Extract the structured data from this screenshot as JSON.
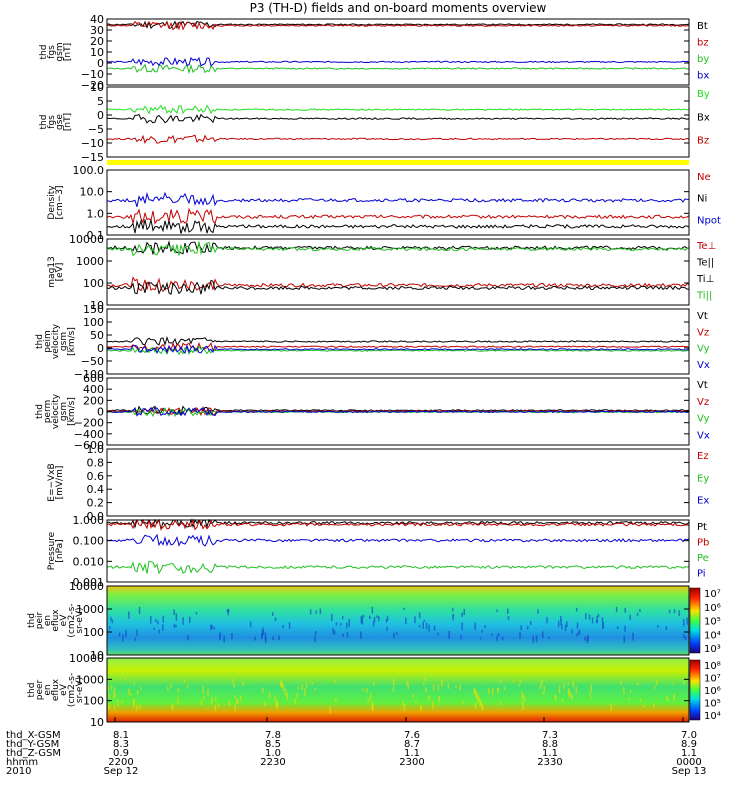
{
  "title": "P3 (TH-D) fields and on-board moments overview",
  "colors": {
    "black": "#000000",
    "red": "#c00000",
    "darkred": "#8b0000",
    "blue": "#0000d0",
    "green": "#20e020",
    "yellow": "#ffff00"
  },
  "chart_data": [
    {
      "id": "fgs_gsm",
      "type": "line",
      "ylabel": [
        "thd",
        "fgs",
        "gsm",
        "[nT]"
      ],
      "yticks": [
        "40",
        "30",
        "20",
        "10",
        "0",
        "−10",
        "−20"
      ],
      "ylim": [
        -20,
        40
      ],
      "legend": [
        {
          "name": "Bt",
          "color": "#000000"
        },
        {
          "name": "bz",
          "color": "#c00000"
        },
        {
          "name": "by",
          "color": "#20c020"
        },
        {
          "name": "bx",
          "color": "#0000d0"
        }
      ],
      "series": [
        {
          "name": "Bt",
          "level": 35
        },
        {
          "name": "bz",
          "level": 34
        },
        {
          "name": "by",
          "level": -5
        },
        {
          "name": "bx",
          "level": 1
        }
      ]
    },
    {
      "id": "fgs_gse",
      "type": "line",
      "ylabel": [
        "thd",
        "fgs",
        "gse",
        "[nT]"
      ],
      "yticks": [
        "10",
        "5",
        "0",
        "−5",
        "−10",
        "−15"
      ],
      "ylim": [
        -18,
        13
      ],
      "legend": [
        {
          "name": "By",
          "color": "#20e020"
        },
        {
          "name": "Bx",
          "color": "#000000"
        },
        {
          "name": "Bz",
          "color": "#c00000"
        }
      ],
      "series": [
        {
          "name": "By",
          "level": 3
        },
        {
          "name": "Bx",
          "level": -1
        },
        {
          "name": "Bz",
          "level": -10
        }
      ]
    },
    {
      "id": "density",
      "type": "line",
      "scale": "log",
      "ylabel": [
        "Density",
        "[cm−3]"
      ],
      "yticks": [
        "100.0",
        "10.0",
        "1.0",
        "0.1"
      ],
      "ylim": [
        0.1,
        100
      ],
      "legend": [
        {
          "name": "Ne",
          "color": "#c00000"
        },
        {
          "name": "Ni",
          "color": "#000000"
        },
        {
          "name": "Npot",
          "color": "#0000d0"
        }
      ],
      "series": [
        {
          "name": "Ne",
          "level": 0.7
        },
        {
          "name": "Ni",
          "level": 0.25
        },
        {
          "name": "Npot",
          "level": 4
        }
      ]
    },
    {
      "id": "temperature",
      "type": "line",
      "scale": "log",
      "ylabel": [
        "mag13",
        "[eV]"
      ],
      "yticks": [
        "10000",
        "1000",
        "100",
        "10"
      ],
      "ylim": [
        10,
        10000
      ],
      "legend": [
        {
          "name": "Te⊥",
          "color": "#c00000"
        },
        {
          "name": "Te||",
          "color": "#000000"
        },
        {
          "name": "Ti⊥",
          "color": "#000000"
        },
        {
          "name": "Ti||",
          "color": "#20c020"
        }
      ],
      "series": [
        {
          "name": "Te⊥",
          "level": 80
        },
        {
          "name": "Te||",
          "level": 60
        },
        {
          "name": "Ti⊥",
          "level": 4000
        },
        {
          "name": "Ti||",
          "level": 3500
        }
      ]
    },
    {
      "id": "peim_velocity",
      "type": "line",
      "ylabel": [
        "thd",
        "peim",
        "velocity",
        "gsm",
        "[km/s]"
      ],
      "yticks": [
        "150",
        "100",
        "50",
        "0",
        "−50",
        "−100"
      ],
      "ylim": [
        -100,
        150
      ],
      "legend": [
        {
          "name": "Vt",
          "color": "#000000"
        },
        {
          "name": "Vz",
          "color": "#c00000"
        },
        {
          "name": "Vy",
          "color": "#20c020"
        },
        {
          "name": "Vx",
          "color": "#0000d0"
        }
      ],
      "series": [
        {
          "name": "Vt",
          "level": 25
        },
        {
          "name": "Vz",
          "level": 5
        },
        {
          "name": "Vy",
          "level": -10
        },
        {
          "name": "Vx",
          "level": -5
        }
      ]
    },
    {
      "id": "perm_velocity",
      "type": "line",
      "ylabel": [
        "thd",
        "perm",
        "velocity",
        "gsm",
        "[km/s]"
      ],
      "yticks": [
        "600",
        "400",
        "200",
        "0",
        "−200",
        "−400",
        "−600"
      ],
      "ylim": [
        -600,
        600
      ],
      "legend": [
        {
          "name": "Vt",
          "color": "#000000"
        },
        {
          "name": "Vz",
          "color": "#c00000"
        },
        {
          "name": "Vy",
          "color": "#20c020"
        },
        {
          "name": "Vx",
          "color": "#0000d0"
        }
      ],
      "series": [
        {
          "name": "Vt",
          "level": 20
        },
        {
          "name": "Vz",
          "level": 5
        },
        {
          "name": "Vy",
          "level": -10
        },
        {
          "name": "Vx",
          "level": -5
        }
      ]
    },
    {
      "id": "efield",
      "type": "line",
      "ylabel": [
        "E=−VxB",
        "[mV/m]"
      ],
      "yticks": [
        "1.0",
        "0.8",
        "0.6",
        "0.4",
        "0.2",
        "0.0"
      ],
      "ylim": [
        0,
        1
      ],
      "legend": [
        {
          "name": "Ez",
          "color": "#c00000"
        },
        {
          "name": "Ey",
          "color": "#20c020"
        },
        {
          "name": "Ex",
          "color": "#0000d0"
        }
      ],
      "series": []
    },
    {
      "id": "pressure",
      "type": "line",
      "scale": "log",
      "ylabel": [
        "Pressure",
        "[nPa]"
      ],
      "yticks": [
        "1.000",
        "0.100",
        "0.010",
        "0.001"
      ],
      "ylim": [
        0.0006,
        1.6
      ],
      "legend": [
        {
          "name": "Pt",
          "color": "#000000"
        },
        {
          "name": "Pb",
          "color": "#c00000"
        },
        {
          "name": "Pe",
          "color": "#20c020"
        },
        {
          "name": "Pi",
          "color": "#0000d0"
        }
      ],
      "series": [
        {
          "name": "Pt",
          "level": 1.1
        },
        {
          "name": "Pb",
          "level": 0.9
        },
        {
          "name": "Pe",
          "level": 0.004
        },
        {
          "name": "Pi",
          "level": 0.12
        }
      ]
    },
    {
      "id": "peir_eflux",
      "type": "heatmap",
      "ylabel": [
        "thd",
        "peir",
        "en",
        "eflux",
        "eV",
        "(cm2-s-",
        "sr-eV)"
      ],
      "yticks": [
        "10000",
        "1000",
        "100",
        "10"
      ],
      "colorbar": [
        "10⁷",
        "10⁶",
        "10⁵",
        "10⁴",
        "10³"
      ]
    },
    {
      "id": "peer_eflux",
      "type": "heatmap",
      "ylabel": [
        "thd",
        "peer",
        "en",
        "eflux",
        "eV",
        "(cm2-s-",
        "sr-eV)"
      ],
      "yticks": [
        "10000",
        "1000",
        "100",
        "10"
      ],
      "colorbar": [
        "10⁸",
        "10⁷",
        "10⁶",
        "10⁵",
        "10⁴"
      ]
    }
  ],
  "xaxis": {
    "row_labels": [
      "thd_X-GSM",
      "thd_Y-GSM",
      "thd_Z-GSM",
      "hhmm",
      "2010"
    ],
    "ticks": [
      {
        "x": "8.1",
        "y": "8.3",
        "z": "0.9",
        "t": "2200",
        "d": "Sep 12"
      },
      {
        "x": "7.8",
        "y": "8.5",
        "z": "1.0",
        "t": "2230",
        "d": ""
      },
      {
        "x": "7.6",
        "y": "8.7",
        "z": "1.1",
        "t": "2300",
        "d": ""
      },
      {
        "x": "7.3",
        "y": "8.8",
        "z": "1.1",
        "t": "2330",
        "d": ""
      },
      {
        "x": "7.0",
        "y": "8.9",
        "z": "1.1",
        "t": "0000",
        "d": "Sep 13"
      }
    ]
  }
}
